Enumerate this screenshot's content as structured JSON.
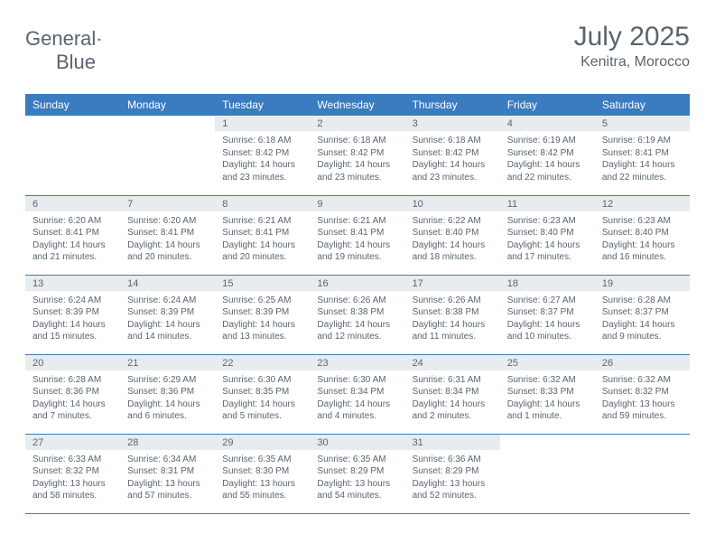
{
  "brand": {
    "part1": "General",
    "part2": "Blue"
  },
  "title": "July 2025",
  "location": "Kenitra, Morocco",
  "colors": {
    "header_bg": "#3b7bbf",
    "header_fg": "#ffffff",
    "daynum_bg": "#e8ecef",
    "text": "#5a6470",
    "rule": "#3b7bbf",
    "page_bg": "#ffffff"
  },
  "day_labels": [
    "Sunday",
    "Monday",
    "Tuesday",
    "Wednesday",
    "Thursday",
    "Friday",
    "Saturday"
  ],
  "weeks": [
    [
      {
        "n": "",
        "sunrise": "",
        "sunset": "",
        "daylight": ""
      },
      {
        "n": "",
        "sunrise": "",
        "sunset": "",
        "daylight": ""
      },
      {
        "n": "1",
        "sunrise": "Sunrise: 6:18 AM",
        "sunset": "Sunset: 8:42 PM",
        "daylight": "Daylight: 14 hours and 23 minutes."
      },
      {
        "n": "2",
        "sunrise": "Sunrise: 6:18 AM",
        "sunset": "Sunset: 8:42 PM",
        "daylight": "Daylight: 14 hours and 23 minutes."
      },
      {
        "n": "3",
        "sunrise": "Sunrise: 6:18 AM",
        "sunset": "Sunset: 8:42 PM",
        "daylight": "Daylight: 14 hours and 23 minutes."
      },
      {
        "n": "4",
        "sunrise": "Sunrise: 6:19 AM",
        "sunset": "Sunset: 8:42 PM",
        "daylight": "Daylight: 14 hours and 22 minutes."
      },
      {
        "n": "5",
        "sunrise": "Sunrise: 6:19 AM",
        "sunset": "Sunset: 8:41 PM",
        "daylight": "Daylight: 14 hours and 22 minutes."
      }
    ],
    [
      {
        "n": "6",
        "sunrise": "Sunrise: 6:20 AM",
        "sunset": "Sunset: 8:41 PM",
        "daylight": "Daylight: 14 hours and 21 minutes."
      },
      {
        "n": "7",
        "sunrise": "Sunrise: 6:20 AM",
        "sunset": "Sunset: 8:41 PM",
        "daylight": "Daylight: 14 hours and 20 minutes."
      },
      {
        "n": "8",
        "sunrise": "Sunrise: 6:21 AM",
        "sunset": "Sunset: 8:41 PM",
        "daylight": "Daylight: 14 hours and 20 minutes."
      },
      {
        "n": "9",
        "sunrise": "Sunrise: 6:21 AM",
        "sunset": "Sunset: 8:41 PM",
        "daylight": "Daylight: 14 hours and 19 minutes."
      },
      {
        "n": "10",
        "sunrise": "Sunrise: 6:22 AM",
        "sunset": "Sunset: 8:40 PM",
        "daylight": "Daylight: 14 hours and 18 minutes."
      },
      {
        "n": "11",
        "sunrise": "Sunrise: 6:23 AM",
        "sunset": "Sunset: 8:40 PM",
        "daylight": "Daylight: 14 hours and 17 minutes."
      },
      {
        "n": "12",
        "sunrise": "Sunrise: 6:23 AM",
        "sunset": "Sunset: 8:40 PM",
        "daylight": "Daylight: 14 hours and 16 minutes."
      }
    ],
    [
      {
        "n": "13",
        "sunrise": "Sunrise: 6:24 AM",
        "sunset": "Sunset: 8:39 PM",
        "daylight": "Daylight: 14 hours and 15 minutes."
      },
      {
        "n": "14",
        "sunrise": "Sunrise: 6:24 AM",
        "sunset": "Sunset: 8:39 PM",
        "daylight": "Daylight: 14 hours and 14 minutes."
      },
      {
        "n": "15",
        "sunrise": "Sunrise: 6:25 AM",
        "sunset": "Sunset: 8:39 PM",
        "daylight": "Daylight: 14 hours and 13 minutes."
      },
      {
        "n": "16",
        "sunrise": "Sunrise: 6:26 AM",
        "sunset": "Sunset: 8:38 PM",
        "daylight": "Daylight: 14 hours and 12 minutes."
      },
      {
        "n": "17",
        "sunrise": "Sunrise: 6:26 AM",
        "sunset": "Sunset: 8:38 PM",
        "daylight": "Daylight: 14 hours and 11 minutes."
      },
      {
        "n": "18",
        "sunrise": "Sunrise: 6:27 AM",
        "sunset": "Sunset: 8:37 PM",
        "daylight": "Daylight: 14 hours and 10 minutes."
      },
      {
        "n": "19",
        "sunrise": "Sunrise: 6:28 AM",
        "sunset": "Sunset: 8:37 PM",
        "daylight": "Daylight: 14 hours and 9 minutes."
      }
    ],
    [
      {
        "n": "20",
        "sunrise": "Sunrise: 6:28 AM",
        "sunset": "Sunset: 8:36 PM",
        "daylight": "Daylight: 14 hours and 7 minutes."
      },
      {
        "n": "21",
        "sunrise": "Sunrise: 6:29 AM",
        "sunset": "Sunset: 8:36 PM",
        "daylight": "Daylight: 14 hours and 6 minutes."
      },
      {
        "n": "22",
        "sunrise": "Sunrise: 6:30 AM",
        "sunset": "Sunset: 8:35 PM",
        "daylight": "Daylight: 14 hours and 5 minutes."
      },
      {
        "n": "23",
        "sunrise": "Sunrise: 6:30 AM",
        "sunset": "Sunset: 8:34 PM",
        "daylight": "Daylight: 14 hours and 4 minutes."
      },
      {
        "n": "24",
        "sunrise": "Sunrise: 6:31 AM",
        "sunset": "Sunset: 8:34 PM",
        "daylight": "Daylight: 14 hours and 2 minutes."
      },
      {
        "n": "25",
        "sunrise": "Sunrise: 6:32 AM",
        "sunset": "Sunset: 8:33 PM",
        "daylight": "Daylight: 14 hours and 1 minute."
      },
      {
        "n": "26",
        "sunrise": "Sunrise: 6:32 AM",
        "sunset": "Sunset: 8:32 PM",
        "daylight": "Daylight: 13 hours and 59 minutes."
      }
    ],
    [
      {
        "n": "27",
        "sunrise": "Sunrise: 6:33 AM",
        "sunset": "Sunset: 8:32 PM",
        "daylight": "Daylight: 13 hours and 58 minutes."
      },
      {
        "n": "28",
        "sunrise": "Sunrise: 6:34 AM",
        "sunset": "Sunset: 8:31 PM",
        "daylight": "Daylight: 13 hours and 57 minutes."
      },
      {
        "n": "29",
        "sunrise": "Sunrise: 6:35 AM",
        "sunset": "Sunset: 8:30 PM",
        "daylight": "Daylight: 13 hours and 55 minutes."
      },
      {
        "n": "30",
        "sunrise": "Sunrise: 6:35 AM",
        "sunset": "Sunset: 8:29 PM",
        "daylight": "Daylight: 13 hours and 54 minutes."
      },
      {
        "n": "31",
        "sunrise": "Sunrise: 6:36 AM",
        "sunset": "Sunset: 8:29 PM",
        "daylight": "Daylight: 13 hours and 52 minutes."
      },
      {
        "n": "",
        "sunrise": "",
        "sunset": "",
        "daylight": ""
      },
      {
        "n": "",
        "sunrise": "",
        "sunset": "",
        "daylight": ""
      }
    ]
  ]
}
